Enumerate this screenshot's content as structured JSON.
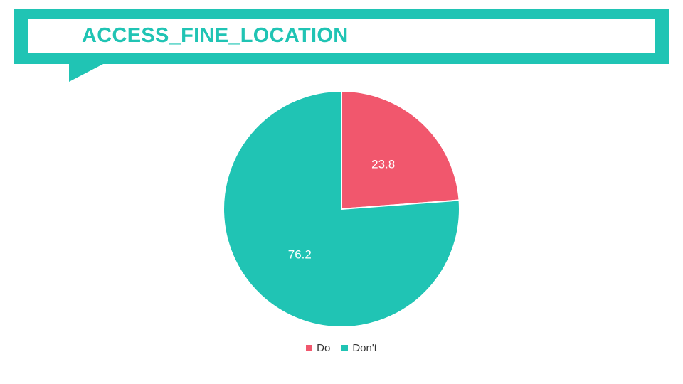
{
  "title": "ACCESS_FINE_LOCATION",
  "colors": {
    "accent": "#20c4b4",
    "do": "#f1576d",
    "dont": "#20c4b4"
  },
  "chart_data": {
    "type": "pie",
    "title": "ACCESS_FINE_LOCATION",
    "categories": [
      "Do",
      "Don't"
    ],
    "values": [
      23.8,
      76.2
    ],
    "data_labels": [
      "23.8",
      "76.2"
    ],
    "legend_position": "bottom",
    "start_angle": "12 o'clock",
    "direction": "clockwise"
  },
  "legend": {
    "items": [
      {
        "label": "Do",
        "color": "#f1576d"
      },
      {
        "label": "Don't",
        "color": "#20c4b4"
      }
    ]
  }
}
